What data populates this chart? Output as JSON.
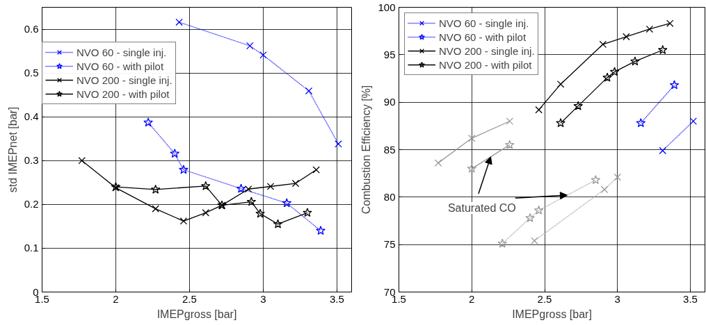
{
  "chart_data": [
    {
      "type": "line",
      "xlabel": "IMEPgross [bar]",
      "ylabel": "std IMEPnet [bar]",
      "xlim": [
        1.5,
        3.6
      ],
      "ylim": [
        0,
        0.65
      ],
      "xticks": [
        1.5,
        2,
        2.5,
        3,
        3.5
      ],
      "yticks": [
        0,
        0.1,
        0.2,
        0.3,
        0.4,
        0.5,
        0.6
      ],
      "grid": true,
      "legend": "top left",
      "series": [
        {
          "name": "NVO 60 - single inj.",
          "color": "#0000ff",
          "marker": "cross",
          "line_style": "dotted",
          "x": [
            2.43,
            2.91,
            3.0,
            3.31,
            3.51
          ],
          "values": [
            0.616,
            0.562,
            0.541,
            0.459,
            0.338
          ]
        },
        {
          "name": "NVO 60 - with pilot",
          "color": "#0000ff",
          "marker": "star",
          "line_style": "dotted",
          "x": [
            2.22,
            2.4,
            2.46,
            2.85,
            3.16,
            3.39
          ],
          "values": [
            0.387,
            0.316,
            0.279,
            0.236,
            0.203,
            0.14
          ]
        },
        {
          "name": "NVO 200 - single inj.",
          "color": "#000000",
          "marker": "cross",
          "line_style": "solid",
          "x": [
            1.77,
            2.0,
            2.27,
            2.46,
            2.61,
            2.72,
            2.9,
            3.05,
            3.22,
            3.36
          ],
          "values": [
            0.3,
            0.238,
            0.19,
            0.162,
            0.181,
            0.198,
            0.235,
            0.241,
            0.248,
            0.279
          ]
        },
        {
          "name": "NVO 200 - with pilot",
          "color": "#000000",
          "marker": "star",
          "line_style": "solid",
          "x": [
            2.0,
            2.27,
            2.61,
            2.72,
            2.92,
            2.98,
            3.1,
            3.3
          ],
          "values": [
            0.24,
            0.234,
            0.242,
            0.198,
            0.206,
            0.179,
            0.155,
            0.181
          ]
        }
      ]
    },
    {
      "type": "line",
      "xlabel": "IMEPgross [bar]",
      "ylabel": "Combustion Efficiency [%]",
      "xlim": [
        1.5,
        3.6
      ],
      "ylim": [
        70,
        100
      ],
      "xticks": [
        1.5,
        2,
        2.5,
        3,
        3.5
      ],
      "yticks": [
        70,
        75,
        80,
        85,
        90,
        95,
        100
      ],
      "grid": true,
      "legend": "top left",
      "annotations": [
        {
          "text": "Saturated CO",
          "x": 2.13,
          "y": 84.25
        }
      ],
      "series": [
        {
          "name": "NVO 60 - single inj.",
          "color": "#0000ff",
          "marker": "cross",
          "line_style": "dotted",
          "x": [
            3.31,
            3.52
          ],
          "values": [
            84.9,
            88.0
          ]
        },
        {
          "name": "NVO 60 - with pilot",
          "color": "#0000ff",
          "marker": "star",
          "line_style": "dotted",
          "x": [
            3.16,
            3.39
          ],
          "values": [
            87.8,
            91.8
          ]
        },
        {
          "name": "NVO 200 - single inj.",
          "color": "#000000",
          "marker": "cross",
          "line_style": "solid",
          "x": [
            2.46,
            2.61,
            2.9,
            3.06,
            3.22,
            3.36
          ],
          "values": [
            89.2,
            91.9,
            96.1,
            96.9,
            97.7,
            98.3
          ]
        },
        {
          "name": "NVO 200 - with pilot",
          "color": "#000000",
          "marker": "star",
          "line_style": "solid",
          "x": [
            2.61,
            2.73,
            2.93,
            2.98,
            3.12,
            3.31
          ],
          "values": [
            87.8,
            89.6,
            92.6,
            93.2,
            94.3,
            95.5
          ]
        },
        {
          "color": "#999999",
          "marker": "cross",
          "line_style": "solid",
          "x": [
            1.77,
            2.0,
            2.26
          ],
          "values": [
            83.6,
            86.2,
            88.0
          ]
        },
        {
          "color": "#999999",
          "marker": "star",
          "line_style": "solid",
          "x": [
            2.0,
            2.26
          ],
          "values": [
            83.0,
            85.5
          ]
        },
        {
          "color": "#999999",
          "marker": "cross",
          "line_style": "dotted",
          "x": [
            2.43,
            2.91,
            3.0
          ],
          "values": [
            75.4,
            80.8,
            82.1
          ]
        },
        {
          "color": "#999999",
          "marker": "star",
          "line_style": "dotted",
          "x": [
            2.21,
            2.4,
            2.46,
            2.85
          ],
          "values": [
            75.1,
            77.8,
            78.6,
            81.8
          ]
        }
      ]
    }
  ]
}
